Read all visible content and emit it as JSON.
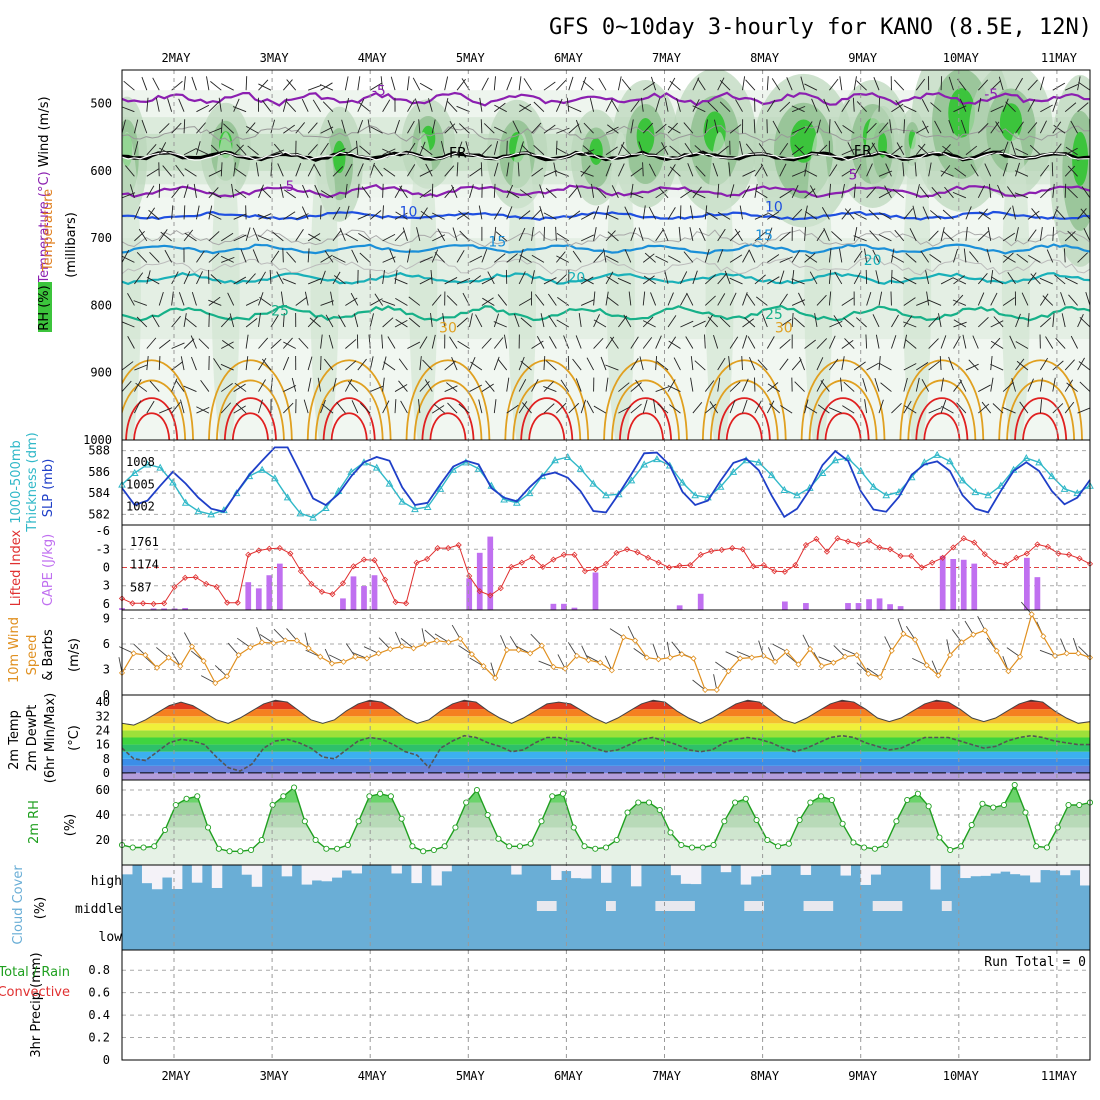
{
  "title": "GFS 0~10day 3-hourly for KANO (8.5E, 12N)",
  "run_total": "Run Total = 0",
  "colors": {
    "temp_5": "#8b1fb0",
    "temp_10": "#1f4fe0",
    "temp_15": "#1a8fd8",
    "temp_20": "#18b0b8",
    "temp_25": "#16b088",
    "temp_30": "#e0a020",
    "temp_hot": "#e02020",
    "slp": "#1f3fc8",
    "thickness": "#30b8c8",
    "lifted": "#e03030",
    "cape": "#c070f0",
    "wind10": "#e09020",
    "rh2m": "#20a020",
    "cloud": "#6aaed6"
  },
  "chart_data": [
    {
      "type": "contour",
      "panel": "upper-air",
      "ylabel_parts": [
        "RH (%)",
        "Temperature (°C)",
        "Wind (m/s)",
        "(millibars)"
      ],
      "xlabel_days": [
        "2MAY",
        "3MAY",
        "4MAY",
        "5MAY",
        "6MAY",
        "7MAY",
        "8MAY",
        "9MAY",
        "10MAY",
        "11MAY"
      ],
      "ylim": [
        1000,
        450
      ],
      "yticks": [
        500,
        600,
        700,
        800,
        900,
        1000
      ],
      "contour_labels": [
        {
          "text": "-5",
          "t": 2.6,
          "p": 488,
          "color": "temp_5"
        },
        {
          "text": "-5",
          "t": 8.8,
          "p": 493,
          "color": "temp_5"
        },
        {
          "text": "5",
          "t": 1.7,
          "p": 630,
          "color": "temp_5"
        },
        {
          "text": "5",
          "t": 7.4,
          "p": 613,
          "color": "temp_5"
        },
        {
          "text": "10",
          "t": 2.9,
          "p": 668,
          "color": "temp_10"
        },
        {
          "text": "10",
          "t": 6.6,
          "p": 660,
          "color": "temp_10"
        },
        {
          "text": "15",
          "t": 3.8,
          "p": 712,
          "color": "temp_15"
        },
        {
          "text": "15",
          "t": 6.5,
          "p": 703,
          "color": "temp_15"
        },
        {
          "text": "20",
          "t": 4.6,
          "p": 766,
          "color": "temp_20"
        },
        {
          "text": "20",
          "t": 7.6,
          "p": 740,
          "color": "temp_20"
        },
        {
          "text": "25",
          "t": 1.6,
          "p": 815,
          "color": "temp_25"
        },
        {
          "text": "25",
          "t": 6.6,
          "p": 820,
          "color": "temp_25"
        },
        {
          "text": "30",
          "t": 3.3,
          "p": 840,
          "color": "temp_30"
        },
        {
          "text": "30",
          "t": 6.7,
          "p": 840,
          "color": "temp_30"
        },
        {
          "text": "FR",
          "t": 3.4,
          "p": 580,
          "color": "black"
        },
        {
          "text": "FR",
          "t": 7.5,
          "p": 577,
          "color": "black"
        }
      ]
    },
    {
      "type": "line",
      "panel": "slp-thickness",
      "ylabel_left": [
        "1000-500mb",
        "Thickness (dm)"
      ],
      "ylabel_right": "SLP (mb)",
      "yticks_left": [
        582,
        584,
        586,
        588
      ],
      "yticks_right": [
        1002,
        1005,
        1008
      ],
      "ylim_left": [
        581,
        589
      ],
      "series": [
        {
          "name": "SLP (mb)",
          "values": [
            1004.5,
            1002.2,
            1002.8,
            1004.8,
            1006.7,
            1005.1,
            1003.2,
            1001.7,
            1001.3,
            1003.9,
            1006.3,
            1008.2,
            1010.0,
            1010.0,
            1006.6,
            1003.1,
            1002.2,
            1003.7,
            1006.1,
            1008.0,
            1008.7,
            1008.2,
            1004.6,
            1002.2,
            1002.5,
            1005.0,
            1007.4,
            1008.2,
            1007.7,
            1004.5,
            1003.2,
            1002.7,
            1004.6,
            1006.2,
            1006.6,
            1005.9,
            1004.1,
            1001.4,
            1001.2,
            1003.7,
            1006.4,
            1009.2,
            1009.3,
            1007.6,
            1004.0,
            1002.2,
            1002.8,
            1005.5,
            1007.9,
            1008.5,
            1006.9,
            1003.5,
            1000.6,
            1001.7,
            1004.3,
            1007.6,
            1009.5,
            1008.2,
            1004.1,
            1001.6,
            1001.3,
            1003.3,
            1006.3,
            1007.7,
            1008.1,
            1006.8,
            1003.5,
            1001.7,
            1001.2,
            1004.1,
            1006.8,
            1008.0,
            1006.8,
            1004.1,
            1002.3,
            1003.2,
            1005.6
          ]
        },
        {
          "name": "Thickness (dm)",
          "values": [
            584.8,
            585.9,
            586.7,
            586.4,
            585.0,
            583.1,
            582.3,
            582.0,
            582.4,
            584.0,
            585.6,
            586.2,
            585.4,
            583.6,
            582.1,
            581.7,
            582.6,
            584.2,
            586.0,
            586.9,
            586.4,
            584.9,
            583.2,
            582.5,
            582.7,
            584.4,
            586.2,
            586.9,
            586.3,
            584.7,
            583.4,
            583.1,
            584.0,
            585.6,
            587.1,
            587.4,
            586.3,
            584.9,
            583.8,
            583.9,
            585.2,
            586.7,
            587.2,
            586.6,
            585.0,
            583.8,
            583.6,
            584.6,
            586.0,
            587.1,
            586.9,
            585.7,
            584.3,
            583.8,
            584.5,
            585.9,
            587.1,
            587.3,
            586.1,
            584.6,
            583.8,
            584.1,
            585.5,
            586.9,
            587.6,
            587.0,
            585.2,
            584.1,
            583.8,
            584.7,
            586.2,
            587.3,
            586.9,
            585.6,
            584.4,
            584.0,
            584.7
          ]
        }
      ]
    },
    {
      "type": "bar+line",
      "panel": "cape-lifted",
      "ylabel_left": "Lifted Index",
      "ylabel_right": "CAPE (J/kg)",
      "yticks_left": [
        -6,
        -3,
        0,
        3,
        6
      ],
      "yticks_right": [
        587,
        1174,
        1761
      ],
      "series": [
        {
          "name": "Lifted Index",
          "values": [
            5.1,
            5.9,
            5.9,
            6.0,
            5.9,
            3.2,
            1.7,
            1.6,
            2.7,
            3.2,
            5.8,
            5.8,
            -2.1,
            -2.8,
            -3.1,
            -3.2,
            -2.3,
            0.6,
            2.7,
            4.0,
            4.4,
            2.6,
            -0.2,
            -1.3,
            -1.2,
            2.0,
            5.7,
            5.9,
            -0.8,
            -1.4,
            -3.2,
            -3.2,
            -3.7,
            1.4,
            3.9,
            4.6,
            3.4,
            -0.1,
            -0.8,
            -1.7,
            -0.1,
            -1.3,
            -2.1,
            -2.1,
            0.6,
            0.3,
            -0.6,
            -2.4,
            -3.0,
            -2.5,
            -1.6,
            -0.8,
            0.0,
            -0.3,
            -0.4,
            -2.1,
            -2.7,
            -2.9,
            -3.2,
            -3.0,
            -0.2,
            -0.4,
            0.6,
            0.7,
            -0.4,
            -3.7,
            -4.7,
            -2.6,
            -4.8,
            -4.3,
            -3.8,
            -4.4,
            -3.3,
            -3.0,
            -1.9,
            -1.9,
            0.0,
            -0.8,
            -1.6,
            -3.3,
            -4.8,
            -4.1,
            -2.2,
            -0.8,
            -0.5,
            -1.6,
            -2.3,
            -3.8,
            -3.4,
            -2.3,
            -2.1,
            -1.5,
            -0.6
          ]
        },
        {
          "name": "CAPE (J/kg)",
          "values": [
            50,
            0,
            0,
            40,
            40,
            40,
            50,
            0,
            0,
            0,
            0,
            0,
            720,
            560,
            900,
            1200,
            0,
            0,
            0,
            0,
            0,
            300,
            870,
            620,
            900,
            0,
            0,
            0,
            0,
            0,
            0,
            0,
            0,
            820,
            1480,
            1900,
            0,
            0,
            0,
            0,
            0,
            160,
            160,
            60,
            0,
            970,
            0,
            0,
            0,
            0,
            0,
            0,
            0,
            120,
            0,
            420,
            0,
            0,
            0,
            0,
            0,
            0,
            0,
            220,
            0,
            180,
            0,
            0,
            0,
            180,
            180,
            280,
            300,
            150,
            100,
            0,
            0,
            0,
            1400,
            1320,
            1300,
            1200,
            0,
            0,
            0,
            0,
            1350,
            850,
            0,
            0,
            0,
            0,
            0
          ]
        }
      ]
    },
    {
      "type": "line",
      "panel": "wind10m",
      "ylabel": [
        "10m Wind",
        "Speed",
        "& Barbs"
      ],
      "yunit": "(m/s)",
      "yticks": [
        0,
        3,
        6,
        9
      ],
      "ylim": [
        0,
        10
      ],
      "series": [
        {
          "name": "10m Wind Speed",
          "values": [
            2.6,
            4.9,
            4.7,
            3.2,
            4.4,
            3.4,
            5.7,
            4.0,
            1.4,
            2.2,
            4.7,
            5.6,
            6.2,
            6.1,
            6.4,
            6.4,
            5.5,
            4.5,
            3.7,
            3.9,
            4.5,
            4.3,
            4.9,
            5.4,
            5.7,
            5.5,
            6.0,
            6.4,
            6.2,
            6.6,
            4.8,
            3.4,
            2.0,
            5.3,
            5.3,
            4.9,
            5.8,
            3.3,
            3.1,
            4.6,
            4.1,
            3.8,
            2.9,
            6.8,
            6.4,
            4.4,
            4.2,
            4.4,
            4.8,
            4.3,
            0.6,
            0.6,
            2.8,
            4.3,
            4.4,
            4.6,
            3.9,
            5.1,
            3.6,
            5.4,
            3.4,
            3.8,
            4.5,
            4.7,
            2.5,
            2.1,
            5.2,
            7.2,
            6.5,
            3.5,
            2.3,
            4.7,
            6.2,
            7.1,
            7.6,
            5.2,
            2.8,
            4.5,
            9.5,
            6.9,
            4.6,
            4.9,
            4.9,
            4.4
          ]
        }
      ]
    },
    {
      "type": "area",
      "panel": "temp2m",
      "ylabel": [
        "2m Temp",
        "2m DewPt",
        "(6hr Min/Max)"
      ],
      "yunit": "(°C)",
      "yticks": [
        0,
        8,
        16,
        24,
        32,
        40
      ],
      "ylim": [
        -4,
        44
      ],
      "series": [
        {
          "name": "2m Temp",
          "values": [
            28,
            27,
            30,
            34,
            38,
            40,
            38,
            34,
            30,
            28,
            31,
            35,
            39,
            41,
            40,
            35,
            30,
            28,
            30,
            35,
            39,
            41,
            40,
            36,
            31,
            28,
            30,
            35,
            39,
            41,
            40,
            35,
            31,
            28,
            31,
            35,
            39,
            40,
            39,
            35,
            31,
            28,
            31,
            35,
            39,
            41,
            40,
            35,
            31,
            28,
            31,
            35,
            39,
            41,
            40,
            35,
            30,
            28,
            31,
            35,
            39,
            41,
            40,
            36,
            31,
            29,
            31,
            35,
            39,
            41,
            40,
            36,
            31,
            29,
            31,
            35,
            39,
            41,
            40,
            35,
            31,
            28,
            29
          ]
        },
        {
          "name": "2m DewPt",
          "values": [
            14,
            8,
            7,
            12,
            17,
            19,
            18,
            16,
            9,
            3,
            1,
            5,
            14,
            18,
            19,
            17,
            14,
            9,
            8,
            13,
            18,
            20,
            19,
            16,
            12,
            10,
            3,
            14,
            18,
            21,
            20,
            17,
            15,
            12,
            13,
            17,
            20,
            20,
            18,
            17,
            14,
            12,
            13,
            16,
            19,
            20,
            18,
            16,
            13,
            12,
            13,
            17,
            19,
            20,
            19,
            17,
            14,
            12,
            14,
            17,
            20,
            21,
            20,
            17,
            15,
            13,
            14,
            17,
            20,
            20,
            20,
            18,
            16,
            14,
            15,
            18,
            20,
            21,
            20,
            18,
            17,
            16,
            16
          ]
        }
      ]
    },
    {
      "type": "area",
      "panel": "rh2m",
      "ylabel": "2m RH",
      "yunit": "(%)",
      "yticks": [
        20,
        40,
        60
      ],
      "ylim": [
        0,
        68
      ],
      "series": [
        {
          "name": "2m RH",
          "values": [
            16,
            14,
            14,
            15,
            28,
            48,
            53,
            55,
            30,
            13,
            11,
            11,
            12,
            20,
            48,
            55,
            62,
            35,
            20,
            13,
            13,
            16,
            35,
            55,
            57,
            55,
            37,
            15,
            11,
            12,
            15,
            30,
            50,
            60,
            40,
            21,
            15,
            15,
            17,
            35,
            55,
            57,
            30,
            15,
            13,
            14,
            20,
            42,
            50,
            50,
            44,
            26,
            16,
            14,
            14,
            16,
            35,
            50,
            53,
            36,
            20,
            15,
            17,
            36,
            50,
            55,
            52,
            33,
            18,
            14,
            13,
            16,
            35,
            52,
            57,
            47,
            22,
            12,
            15,
            32,
            49,
            46,
            48,
            64,
            42,
            15,
            14,
            30,
            48,
            48,
            50
          ]
        }
      ]
    },
    {
      "type": "bar",
      "panel": "cloud",
      "ylabel": [
        "Cloud Cover",
        "(%)"
      ],
      "layers": [
        "high",
        "middle",
        "low"
      ]
    },
    {
      "type": "bar",
      "panel": "precip",
      "ylabel": [
        "Total / Rain",
        "Convective"
      ],
      "ylabel_unit": "3hr Precip (mm)",
      "yticks": [
        0,
        0.2,
        0.4,
        0.6,
        0.8
      ],
      "ylim": [
        0,
        0.98
      ]
    }
  ]
}
